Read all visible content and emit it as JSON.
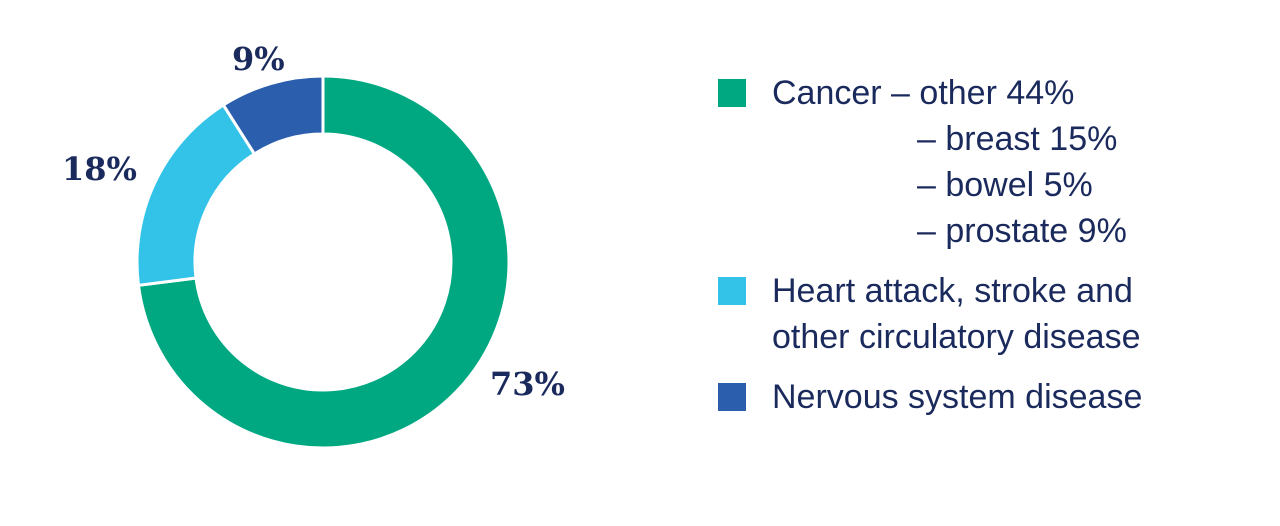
{
  "chart_data": {
    "type": "pie",
    "donut": true,
    "slices": [
      {
        "label": "Cancer",
        "value": 73,
        "display": "73%",
        "color": "#00a882"
      },
      {
        "label": "Heart attack, stroke and other circulatory disease",
        "value": 18,
        "display": "18%",
        "color": "#33c3e8"
      },
      {
        "label": "Nervous system disease",
        "value": 9,
        "display": "9%",
        "color": "#2b5fad"
      }
    ]
  },
  "legend": {
    "cancer": {
      "line1": "Cancer – other 44%",
      "sub": [
        "– breast 15%",
        "– bowel 5%",
        "– prostate 9%"
      ]
    },
    "circulatory": {
      "line1": "Heart attack, stroke and",
      "line2": "other circulatory disease"
    },
    "nervous": {
      "line1": "Nervous system disease"
    }
  }
}
